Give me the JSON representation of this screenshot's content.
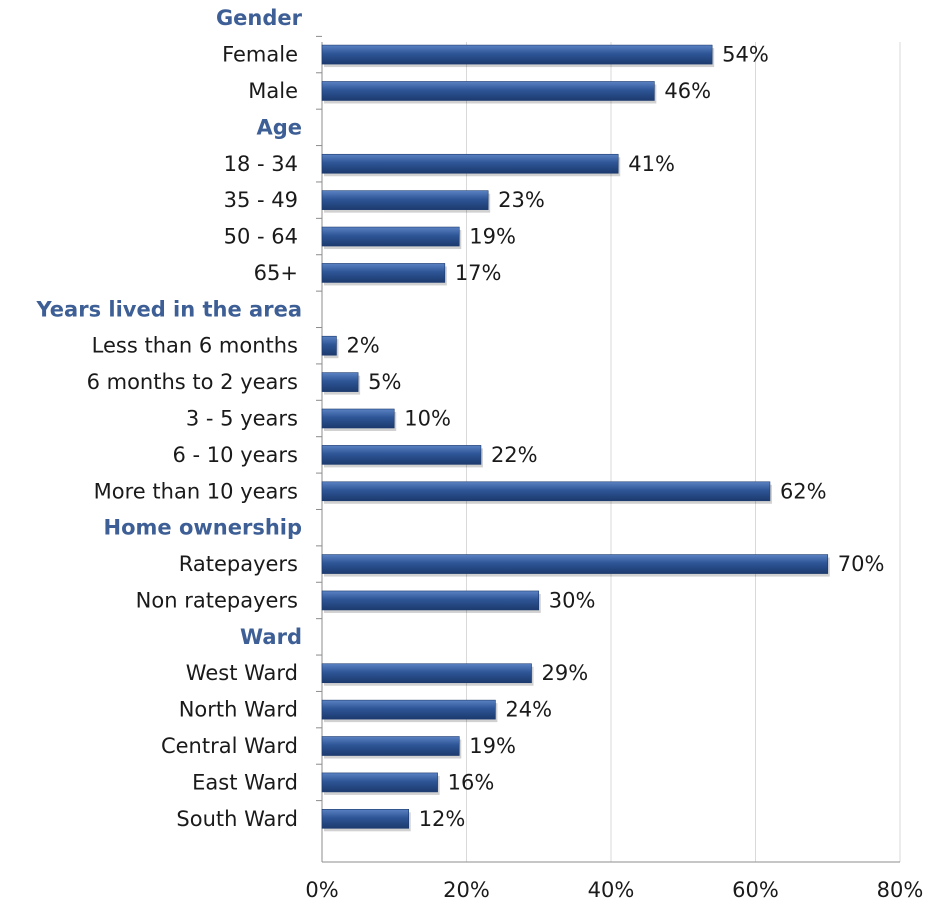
{
  "chart_data": {
    "type": "bar",
    "orientation": "horizontal",
    "title": "",
    "xlabel": "",
    "ylabel": "",
    "xlim": [
      0,
      80
    ],
    "x_ticks": [
      "0%",
      "20%",
      "40%",
      "60%",
      "80%"
    ],
    "grid": "vertical",
    "value_format": "percent",
    "groups": [
      {
        "name": "Gender",
        "categories": [
          "Female",
          "Male"
        ],
        "values": [
          54,
          46
        ]
      },
      {
        "name": "Age",
        "categories": [
          "18 - 34",
          "35 - 49",
          "50 - 64",
          "65+"
        ],
        "values": [
          41,
          23,
          19,
          17
        ]
      },
      {
        "name": "Years lived in the area",
        "categories": [
          "Less than 6 months",
          "6 months to 2 years",
          "3 - 5 years",
          "6 - 10 years",
          "More than 10 years"
        ],
        "values": [
          2,
          5,
          10,
          22,
          62
        ]
      },
      {
        "name": "Home ownership",
        "categories": [
          "Ratepayers",
          "Non ratepayers"
        ],
        "values": [
          70,
          30
        ]
      },
      {
        "name": "Ward",
        "categories": [
          "West Ward",
          "North Ward",
          "Central Ward",
          "East Ward",
          "South Ward"
        ],
        "values": [
          29,
          24,
          19,
          16,
          12
        ]
      }
    ],
    "colors": {
      "bar": "#2e5596",
      "bar_dark": "#1c3a6e",
      "bar_light": "#5b83c4",
      "group_label": "#3d5f96",
      "grid": "#d9d9d9",
      "axis": "#8c8c8c"
    }
  }
}
